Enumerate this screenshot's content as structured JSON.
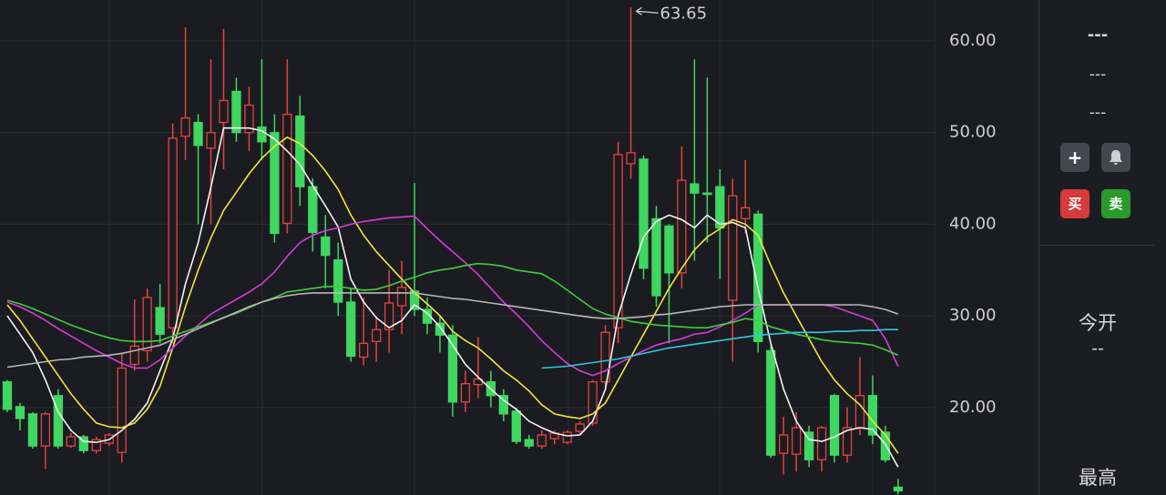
{
  "chart_data": {
    "type": "candlestick",
    "categories": [
      null,
      null,
      null,
      null,
      null,
      null,
      null,
      null,
      null,
      null,
      null,
      null,
      null,
      null,
      null,
      null,
      null,
      null,
      null,
      null,
      null,
      null,
      null,
      null,
      null,
      null,
      null,
      null,
      null,
      null,
      null,
      null,
      null,
      null,
      null,
      null,
      null,
      null,
      null,
      null,
      null,
      null,
      null,
      null,
      null,
      null,
      null,
      null,
      null,
      null,
      null,
      null,
      null,
      null,
      null,
      null,
      null,
      null,
      null,
      null,
      null,
      null,
      null,
      null,
      null,
      null,
      null,
      null,
      null,
      null,
      null
    ],
    "open": [
      22.8,
      20.1,
      19.3,
      15.8,
      21.3,
      15.8,
      16.8,
      15.3,
      16.1,
      15.1,
      24.7,
      26.2,
      30.9,
      28.7,
      49.6,
      51.1,
      48.3,
      51.1,
      54.5,
      50,
      50.6,
      50,
      40.1,
      51.8,
      44.1,
      38.6,
      36.1,
      31.5,
      25.5,
      27.2,
      28.5,
      31.1,
      32.7,
      30.7,
      29.2,
      27.9,
      20.6,
      22.5,
      22.8,
      21.3,
      19.6,
      16.5,
      15.8,
      16.6,
      16.2,
      17.4,
      18.3,
      22.8,
      28.7,
      46.6,
      47.1,
      40.6,
      39.8,
      34.7,
      44.4,
      43.4,
      44.1,
      31.7,
      40.6,
      41.1,
      26.2,
      15,
      14.9,
      17.3,
      14.3,
      21.3,
      14.8,
      17.8,
      21.3,
      17.3,
      11.3
    ],
    "high": [
      23,
      20.5,
      19.5,
      19.5,
      22,
      17.2,
      17,
      16.8,
      17.2,
      26,
      31.8,
      33,
      33.5,
      51,
      61.5,
      52,
      58,
      61.3,
      56,
      55,
      58,
      52,
      58,
      54,
      45,
      41,
      38,
      33,
      32,
      30,
      35,
      36,
      44.5,
      32,
      30,
      29,
      24,
      27.7,
      24,
      22,
      20,
      17,
      17.5,
      17.5,
      17.5,
      18.5,
      23,
      29,
      49,
      63.65,
      47.5,
      42,
      40,
      48.5,
      58,
      56,
      46,
      45,
      47,
      41.5,
      27,
      19,
      19.5,
      18,
      18,
      21.5,
      20,
      25.5,
      23.5,
      18,
      12.2
    ],
    "low": [
      19.5,
      17.5,
      15.5,
      13.3,
      15.5,
      15.6,
      15,
      15,
      15.8,
      14,
      24,
      25,
      27,
      27,
      47,
      40,
      40,
      46,
      49,
      48,
      47,
      38,
      39,
      42,
      37,
      33,
      30,
      25,
      24.6,
      25,
      26,
      28,
      30,
      28,
      26,
      19,
      19.5,
      21,
      20,
      18.5,
      16,
      15.5,
      15.5,
      16,
      16,
      17,
      18,
      22,
      27,
      45,
      34,
      31,
      27,
      33,
      36,
      38,
      34,
      25,
      39,
      26,
      14.5,
      12.7,
      13,
      13.5,
      13,
      14,
      14,
      17,
      16,
      14,
      10.5
    ],
    "close": [
      19.8,
      18.8,
      15.8,
      19.3,
      15.8,
      16.8,
      15.3,
      16.5,
      17,
      24.3,
      26.7,
      32,
      28,
      49.4,
      51.6,
      48.6,
      50,
      53.5,
      50,
      53,
      49,
      39,
      52,
      44.1,
      39.1,
      36.6,
      31.5,
      25.6,
      27,
      28.5,
      31.4,
      33.1,
      30.7,
      29.2,
      27.9,
      20.6,
      22.6,
      23.1,
      21.3,
      19.3,
      16.3,
      15.8,
      17,
      17.2,
      17.3,
      18.2,
      22.8,
      28.2,
      47.6,
      47.8,
      35.2,
      32.2,
      34.7,
      44.8,
      43.4,
      43.3,
      39.6,
      43.1,
      41.8,
      27.2,
      14.8,
      17,
      17.8,
      14.3,
      17.8,
      14.8,
      17.8,
      21.3,
      17,
      14.3,
      10.9
    ],
    "up_color": "#e8413e",
    "down_color": "#3fd760",
    "series": [
      {
        "color": "#f2f2f2",
        "values": [
          30,
          28,
          26,
          23,
          19.5,
          17.5,
          16.3,
          16.2,
          16.5,
          17.5,
          18.7,
          20.5,
          24,
          27.5,
          33.5,
          38,
          44,
          50.5,
          50.5,
          50.5,
          50.2,
          49.3,
          48,
          46.5,
          44.2,
          42,
          39.7,
          34,
          31.5,
          29.8,
          28.7,
          29.5,
          31.2,
          30.3,
          28.8,
          26.8,
          24.7,
          23.3,
          22,
          20.8,
          19.8,
          18.5,
          17.8,
          17.2,
          16.9,
          17,
          18.5,
          22,
          30,
          34.5,
          38.6,
          40.3,
          41,
          40.5,
          39.6,
          41,
          40,
          40.2,
          39.6,
          33,
          27,
          22,
          18.5,
          16.5,
          16.3,
          16.8,
          17.5,
          17.8,
          17.6,
          16,
          13.5
        ]
      },
      {
        "color": "#f0e63a",
        "values": [
          31.2,
          29.5,
          27.5,
          25.5,
          23.5,
          21.5,
          19.8,
          18.3,
          17.9,
          17.8,
          18.3,
          19.8,
          22.3,
          26.5,
          31,
          35,
          38.5,
          41.5,
          43.5,
          45.5,
          47.2,
          48.5,
          49.5,
          48.8,
          47.5,
          45.8,
          43.8,
          41,
          38.8,
          37,
          35.5,
          34,
          32.5,
          31.3,
          30,
          28.3,
          27.3,
          26.5,
          25.3,
          24,
          23,
          21.8,
          20.3,
          19.3,
          19,
          18.8,
          19.3,
          20.5,
          23,
          25.5,
          28,
          30.5,
          33,
          35.2,
          37.2,
          38.6,
          39.5,
          40.5,
          40,
          38.8,
          35.5,
          32.5,
          30,
          27.5,
          25,
          23,
          21.5,
          20.3,
          18.5,
          17,
          15
        ]
      },
      {
        "color": "#d63ad6",
        "values": [
          31.5,
          31,
          30.3,
          29.5,
          28.6,
          27.8,
          27,
          26.2,
          25.5,
          24.8,
          24.3,
          24.3,
          25.2,
          26.5,
          27.8,
          29,
          30.2,
          31,
          31.8,
          32.6,
          33.5,
          34.8,
          36.5,
          38,
          38.8,
          39.3,
          39.6,
          40,
          40.3,
          40.5,
          40.7,
          40.8,
          40.9,
          39.5,
          38.2,
          37,
          35.8,
          34.5,
          33,
          31.5,
          30.2,
          28.8,
          27.3,
          26,
          24.8,
          24,
          23.5,
          24,
          24.8,
          25.5,
          26.2,
          26.8,
          27.2,
          27.5,
          28,
          28.2,
          28.8,
          29.5,
          30.3,
          31.2,
          31.2,
          31.2,
          31.2,
          31.2,
          31.2,
          31,
          30.5,
          30,
          29.5,
          27.5,
          24.5
        ]
      },
      {
        "color": "#3ccf3c",
        "values": [
          31.7,
          31.3,
          30.8,
          30.2,
          29.6,
          29,
          28.5,
          28,
          27.6,
          27.3,
          27.2,
          27.2,
          27.3,
          27.8,
          28.3,
          28.8,
          29.3,
          29.8,
          30.3,
          30.9,
          31.5,
          32,
          32.6,
          32.8,
          33,
          33.2,
          33.2,
          33,
          32.8,
          32.9,
          33.3,
          33.8,
          34.2,
          34.7,
          35,
          35.2,
          35.5,
          35.7,
          35.6,
          35.4,
          35,
          34.8,
          34.6,
          33.8,
          32.8,
          31.8,
          30.8,
          30.2,
          29.8,
          29.4,
          29.2,
          29,
          28.9,
          28.8,
          28.7,
          28.7,
          29,
          29.3,
          29.7,
          29.5,
          28.8,
          28.4,
          28,
          27.7,
          27.4,
          27.2,
          27.1,
          27,
          26.8,
          26.3,
          25.7
        ]
      },
      {
        "color": "#b8b8b8",
        "values": [
          24.4,
          24.6,
          24.8,
          25,
          25.2,
          25.3,
          25.5,
          25.6,
          25.7,
          25.9,
          26.2,
          26.5,
          26.8,
          27.4,
          28,
          28.6,
          29.2,
          29.8,
          30.4,
          31,
          31.5,
          31.9,
          32.2,
          32.4,
          32.5,
          32.5,
          32.5,
          32.5,
          32.5,
          32.5,
          32.5,
          32.5,
          32.5,
          32.3,
          32.1,
          31.9,
          31.8,
          31.6,
          31.4,
          31.2,
          31,
          30.8,
          30.6,
          30.4,
          30.2,
          30,
          29.8,
          29.7,
          29.7,
          29.8,
          29.9,
          30.1,
          30.2,
          30.4,
          30.6,
          30.8,
          31,
          31.1,
          31.2,
          31.2,
          31.2,
          31.2,
          31.2,
          31.2,
          31.2,
          31.2,
          31.2,
          31.2,
          31,
          30.7,
          30.2
        ]
      },
      {
        "color": "#2fc8e0",
        "values": [
          null,
          null,
          null,
          null,
          null,
          null,
          null,
          null,
          null,
          null,
          null,
          null,
          null,
          null,
          null,
          null,
          null,
          null,
          null,
          null,
          null,
          null,
          null,
          null,
          null,
          null,
          null,
          null,
          null,
          null,
          null,
          null,
          null,
          null,
          null,
          null,
          null,
          null,
          null,
          null,
          null,
          null,
          24.3,
          24.4,
          24.5,
          24.7,
          24.9,
          25.1,
          25.3,
          25.6,
          25.9,
          26.2,
          26.5,
          26.7,
          26.9,
          27.1,
          27.3,
          27.5,
          27.7,
          27.9,
          28,
          28.1,
          28.2,
          28.2,
          28.2,
          28.3,
          28.3,
          28.4,
          28.4,
          28.5,
          28.5
        ]
      }
    ],
    "ylim": [
      10.45,
      64.47
    ],
    "yticks": [
      {
        "value": 20,
        "label": "20.00"
      },
      {
        "value": 30,
        "label": "30.00"
      },
      {
        "value": 40,
        "label": "40.00"
      },
      {
        "value": 50,
        "label": "50.00"
      },
      {
        "value": 60,
        "label": "60.00"
      }
    ],
    "grid": true,
    "annotations": [
      {
        "text": "63.65"
      }
    ]
  },
  "sidebar": {
    "price": "---",
    "change": "---",
    "change_pct": "---",
    "buy": "买",
    "sell": "卖",
    "open_label": "今开",
    "open_value": "--",
    "high_label": "最高"
  }
}
